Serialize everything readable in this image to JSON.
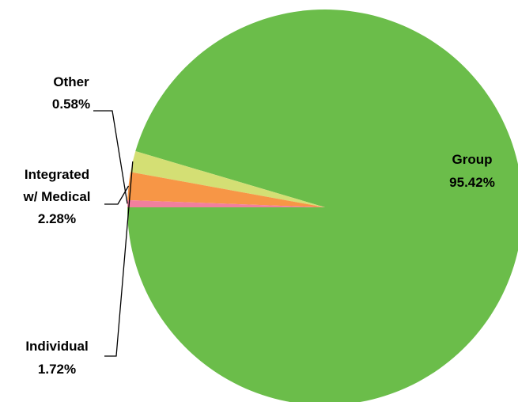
{
  "chart_data": {
    "type": "pie",
    "title": "",
    "legend": "none",
    "slices": [
      {
        "name": "Group",
        "value": 95.42,
        "label": "95.42%",
        "color": "#6bbd4a"
      },
      {
        "name": "Individual",
        "value": 1.72,
        "label": "1.72%",
        "color": "#d4df74"
      },
      {
        "name": "Integrated w/ Medical",
        "name_lines": [
          "Integrated",
          "w/ Medical"
        ],
        "value": 2.28,
        "label": "2.28%",
        "color": "#f79646"
      },
      {
        "name": "Other",
        "value": 0.58,
        "label": "0.58%",
        "color": "#f17f9e"
      }
    ]
  }
}
